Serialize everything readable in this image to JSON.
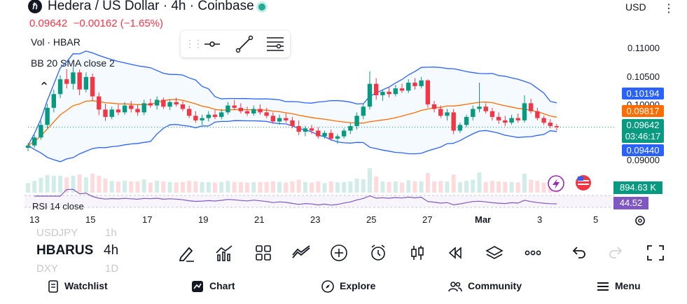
{
  "header": {
    "title": "Hedera / US Dollar · 4h · Coinbase",
    "price": "0.09642",
    "change": "−0.00162 (−1.65%)",
    "currency": "USD"
  },
  "indicators": {
    "volume": "Vol · HBAR",
    "bollinger": "BB 20 SMA close 2",
    "rsi": "RSI 14 close"
  },
  "price_axis": [
    "0.11000",
    "0.10500",
    "0.10000",
    "0.09000"
  ],
  "price_tags": {
    "bb_upper": "0.10194",
    "bb_basis": "0.09817",
    "last": "0.09642",
    "countdown": "03:46:17",
    "bb_lower": "0.09440",
    "volume": "894.63 K",
    "rsi": "44.52"
  },
  "time_axis": [
    "13",
    "15",
    "17",
    "19",
    "21",
    "23",
    "25",
    "27",
    "Mar",
    "3",
    "5"
  ],
  "toolbar": {
    "symbol": "HBARUS",
    "interval": "4h",
    "prev_symbol": "USDJPY",
    "prev_interval": "1h",
    "next_symbol": "DXY",
    "next_interval": "1D"
  },
  "nav": {
    "watchlist": "Watchlist",
    "chart": "Chart",
    "explore": "Explore",
    "community": "Community",
    "menu": "Menu"
  },
  "colors": {
    "up": "#089981",
    "down": "#f23645",
    "bb_band": "#2962ff",
    "bb_basis": "#ff6d00",
    "rsi": "#7e57c2"
  },
  "chart_data": {
    "type": "candlestick",
    "symbol": "HBAR/USD",
    "interval": "4h",
    "ohlc": [
      [
        0.0928,
        0.0936,
        0.0922,
        0.0932
      ],
      [
        0.0932,
        0.095,
        0.0928,
        0.0946
      ],
      [
        0.0946,
        0.0975,
        0.0942,
        0.0968
      ],
      [
        0.0968,
        0.1005,
        0.0962,
        0.0998
      ],
      [
        0.0998,
        0.103,
        0.099,
        0.1022
      ],
      [
        0.1022,
        0.1055,
        0.1015,
        0.1048
      ],
      [
        0.1048,
        0.1066,
        0.1032,
        0.104
      ],
      [
        0.104,
        0.107,
        0.103,
        0.106
      ],
      [
        0.106,
        0.1065,
        0.102,
        0.103
      ],
      [
        0.103,
        0.106,
        0.1025,
        0.1052
      ],
      [
        0.1052,
        0.1058,
        0.101,
        0.1018
      ],
      [
        0.1018,
        0.1025,
        0.0985,
        0.0995
      ],
      [
        0.0995,
        0.1005,
        0.0975,
        0.0982
      ],
      [
        0.0982,
        0.1,
        0.0978,
        0.0995
      ],
      [
        0.0995,
        0.1004,
        0.0985,
        0.099
      ],
      [
        0.099,
        0.1008,
        0.0986,
        0.1002
      ],
      [
        0.1002,
        0.101,
        0.099,
        0.0996
      ],
      [
        0.0996,
        0.1004,
        0.0984,
        0.099
      ],
      [
        0.099,
        0.1012,
        0.0985,
        0.1006
      ],
      [
        0.1006,
        0.1014,
        0.0998,
        0.1002
      ],
      [
        0.1002,
        0.1018,
        0.0995,
        0.1012
      ],
      [
        0.1012,
        0.1016,
        0.0996,
        0.1
      ],
      [
        0.1,
        0.1012,
        0.0994,
        0.1008
      ],
      [
        0.1008,
        0.1016,
        0.1,
        0.1004
      ],
      [
        0.1004,
        0.101,
        0.0992,
        0.0996
      ],
      [
        0.0996,
        0.1002,
        0.098,
        0.0984
      ],
      [
        0.0984,
        0.0992,
        0.0972,
        0.0976
      ],
      [
        0.0976,
        0.0986,
        0.0968,
        0.098
      ],
      [
        0.098,
        0.0992,
        0.0974,
        0.0986
      ],
      [
        0.0986,
        0.0994,
        0.0978,
        0.0982
      ],
      [
        0.0982,
        0.0996,
        0.0978,
        0.099
      ],
      [
        0.099,
        0.1008,
        0.0986,
        0.1002
      ],
      [
        0.1002,
        0.1012,
        0.0994,
        0.0998
      ],
      [
        0.0998,
        0.1006,
        0.0988,
        0.0992
      ],
      [
        0.0992,
        0.1,
        0.0984,
        0.0988
      ],
      [
        0.0988,
        0.1002,
        0.0984,
        0.0996
      ],
      [
        0.0996,
        0.1004,
        0.0986,
        0.099
      ],
      [
        0.099,
        0.0998,
        0.098,
        0.0984
      ],
      [
        0.0984,
        0.099,
        0.097,
        0.0974
      ],
      [
        0.0974,
        0.0986,
        0.0968,
        0.098
      ],
      [
        0.098,
        0.0988,
        0.0972,
        0.0976
      ],
      [
        0.0976,
        0.0982,
        0.0962,
        0.0966
      ],
      [
        0.0966,
        0.0976,
        0.095,
        0.0956
      ],
      [
        0.0956,
        0.0966,
        0.0948,
        0.0962
      ],
      [
        0.0962,
        0.0968,
        0.0952,
        0.0958
      ],
      [
        0.0958,
        0.0964,
        0.0944,
        0.0948
      ],
      [
        0.0948,
        0.0958,
        0.0944,
        0.0954
      ],
      [
        0.0954,
        0.096,
        0.094,
        0.0944
      ],
      [
        0.0944,
        0.0952,
        0.0935,
        0.0948
      ],
      [
        0.0948,
        0.0962,
        0.0944,
        0.0958
      ],
      [
        0.0958,
        0.0972,
        0.0952,
        0.0966
      ],
      [
        0.0966,
        0.099,
        0.096,
        0.0984
      ],
      [
        0.0984,
        0.1006,
        0.0978,
        0.1
      ],
      [
        0.1,
        0.1062,
        0.0995,
        0.104
      ],
      [
        0.104,
        0.105,
        0.1012,
        0.102
      ],
      [
        0.102,
        0.103,
        0.101,
        0.1026
      ],
      [
        0.1026,
        0.1034,
        0.1016,
        0.1022
      ],
      [
        0.1022,
        0.1038,
        0.1018,
        0.1032
      ],
      [
        0.1032,
        0.104,
        0.1024,
        0.1028
      ],
      [
        0.1028,
        0.1048,
        0.1024,
        0.1042
      ],
      [
        0.1042,
        0.105,
        0.103,
        0.1036
      ],
      [
        0.1036,
        0.1052,
        0.1032,
        0.1046
      ],
      [
        0.1046,
        0.1048,
        0.0998,
        0.1004
      ],
      [
        0.1004,
        0.101,
        0.099,
        0.0996
      ],
      [
        0.0996,
        0.1002,
        0.098,
        0.0984
      ],
      [
        0.0984,
        0.0996,
        0.0976,
        0.099
      ],
      [
        0.099,
        0.0996,
        0.0952,
        0.0958
      ],
      [
        0.0958,
        0.0972,
        0.0954,
        0.0968
      ],
      [
        0.0968,
        0.0986,
        0.0964,
        0.0982
      ],
      [
        0.0982,
        0.1002,
        0.0976,
        0.0996
      ],
      [
        0.0996,
        0.1042,
        0.099,
        0.1
      ],
      [
        0.1,
        0.1006,
        0.0988,
        0.0992
      ],
      [
        0.0992,
        0.0998,
        0.0976,
        0.0982
      ],
      [
        0.0982,
        0.099,
        0.097,
        0.0976
      ],
      [
        0.0976,
        0.0984,
        0.0966,
        0.0972
      ],
      [
        0.0972,
        0.0986,
        0.0968,
        0.098
      ],
      [
        0.098,
        0.0988,
        0.0972,
        0.0976
      ],
      [
        0.0976,
        0.102,
        0.0972,
        0.1006
      ],
      [
        0.1006,
        0.1014,
        0.0988,
        0.0992
      ],
      [
        0.0992,
        0.0998,
        0.0976,
        0.098
      ],
      [
        0.098,
        0.0984,
        0.0968,
        0.0972
      ],
      [
        0.0972,
        0.0978,
        0.0962,
        0.0966
      ],
      [
        0.0966,
        0.097,
        0.0958,
        0.0964
      ]
    ],
    "y_range": [
      0.0885,
      0.115
    ],
    "bb_period": 20,
    "bb_mult": 2,
    "rsi_last": 44.52,
    "volume_last": "894.63 K"
  }
}
